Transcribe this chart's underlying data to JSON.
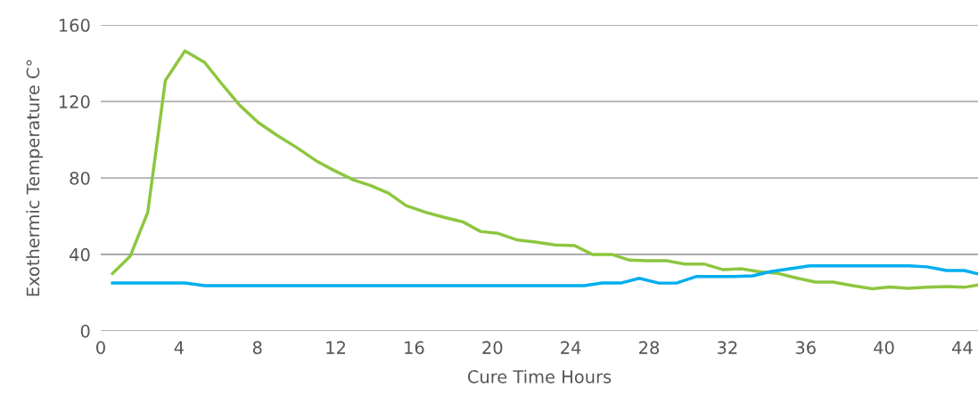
{
  "chart_data": {
    "type": "line",
    "xlabel": "Cure Time Hours",
    "ylabel": "Exothermic Temperature C°",
    "xlim": [
      0,
      44.8
    ],
    "xticks": [
      0,
      4,
      8,
      12,
      16,
      20,
      24,
      28,
      32,
      36,
      40,
      44
    ],
    "ylim": [
      0,
      160
    ],
    "yticks": [
      0,
      40,
      80,
      120,
      160
    ],
    "grid": "y",
    "legend": false,
    "marker": "none",
    "line_style": "solid",
    "series": [
      {
        "color": "#8dc63f",
        "x": [
          0.6,
          1.5,
          2.4,
          3.3,
          4.3,
          5.3,
          6.2,
          7.1,
          8.05,
          9.05,
          10,
          11,
          11.9,
          12.9,
          13.8,
          14.7,
          15.6,
          16.6,
          17.5,
          18.5,
          19.4,
          20.3,
          21.3,
          22.2,
          23.2,
          24.2,
          25.1,
          26.1,
          27,
          27.9,
          28.9,
          29.8,
          30.8,
          31.8,
          32.7,
          33.6,
          34.6,
          35.6,
          36.5,
          37.4,
          38.4,
          39.4,
          40.3,
          41.2,
          42.2,
          43.2,
          44.1,
          44.8
        ],
        "values": [
          30,
          39,
          62,
          131,
          146.5,
          140.5,
          129,
          118,
          109,
          102,
          96,
          89,
          84,
          79,
          76,
          72,
          65.5,
          62,
          59.5,
          57,
          52,
          51,
          47.5,
          46.5,
          45,
          44.6,
          40,
          40,
          37,
          36.7,
          36.7,
          35,
          35,
          32,
          32.5,
          31,
          30,
          27.5,
          25.5,
          25.5,
          23.7,
          22,
          23,
          22.3,
          22.8,
          23.2,
          22.8,
          24
        ]
      },
      {
        "color": "#00aeef",
        "x": [
          0.6,
          4.3,
          5.3,
          24.7,
          25.6,
          26.6,
          27.5,
          28.5,
          29.4,
          30.4,
          31.3,
          32.3,
          33.3,
          34.2,
          35.2,
          36.2,
          41.3,
          42.2,
          43.2,
          44.1,
          44.8
        ],
        "values": [
          25.1,
          25.1,
          23.7,
          23.7,
          25.1,
          25.1,
          27.5,
          25,
          25,
          28.4,
          28.4,
          28.4,
          28.8,
          31,
          32.5,
          34,
          34,
          33.5,
          31.6,
          31.6,
          29.8
        ]
      }
    ]
  }
}
